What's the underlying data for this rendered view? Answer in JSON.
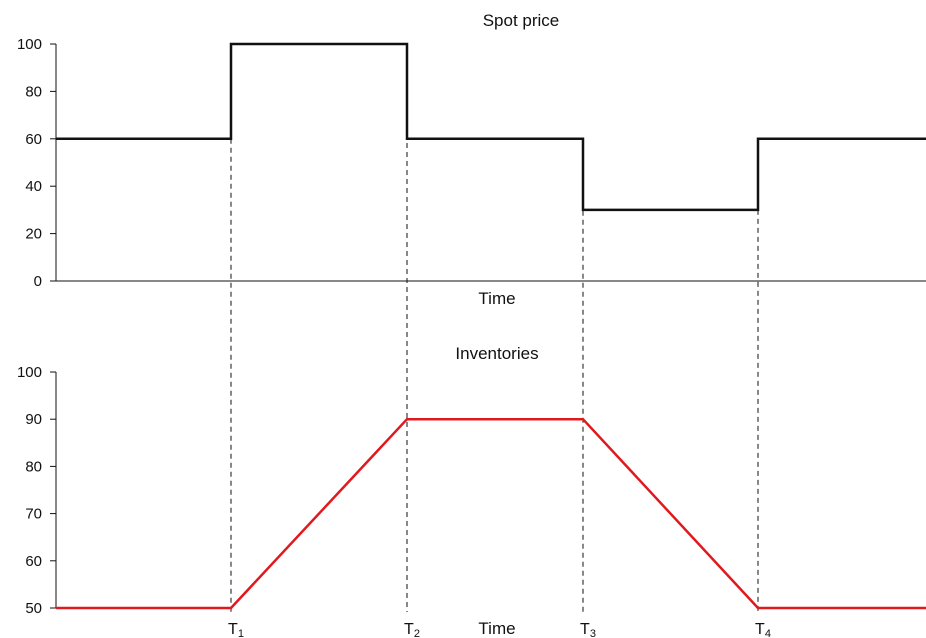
{
  "chart_data": [
    {
      "type": "line",
      "title": "Spot price",
      "xlabel": "Time",
      "ylabel": "",
      "ylim": [
        0,
        100
      ],
      "yticks": [
        0,
        20,
        40,
        60,
        80,
        100
      ],
      "x": [
        0,
        1,
        1,
        2,
        2,
        3,
        3,
        4,
        4,
        5
      ],
      "values": [
        60,
        60,
        100,
        100,
        60,
        60,
        30,
        30,
        60,
        60
      ],
      "line_color": "#111111",
      "grid": false,
      "legend": "none"
    },
    {
      "type": "line",
      "title": "Inventories",
      "xlabel": "Time",
      "ylabel": "",
      "ylim": [
        50,
        100
      ],
      "yticks": [
        50,
        60,
        70,
        80,
        90,
        100
      ],
      "x": [
        0,
        1,
        2,
        3,
        4,
        5
      ],
      "values": [
        50,
        50,
        90,
        90,
        50,
        50
      ],
      "line_color": "#e0191f",
      "grid": false,
      "legend": "none"
    }
  ],
  "markers": [
    {
      "base": "T",
      "sub": "1"
    },
    {
      "base": "T",
      "sub": "2"
    },
    {
      "base": "T",
      "sub": "3"
    },
    {
      "base": "T",
      "sub": "4"
    }
  ]
}
